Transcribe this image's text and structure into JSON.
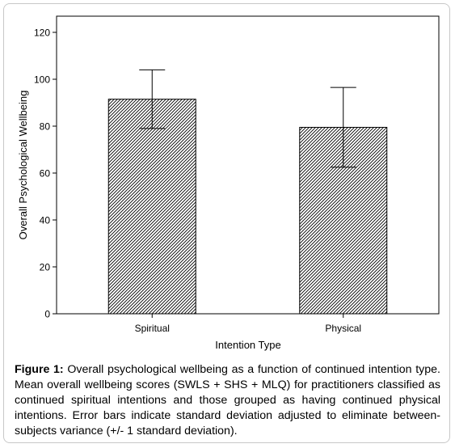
{
  "chart_data": {
    "type": "bar",
    "title": "",
    "xlabel": "Intention Type",
    "ylabel": "Overall Psychological Wellbeing",
    "categories": [
      "Spiritual",
      "Physical"
    ],
    "values": [
      91.5,
      79.5
    ],
    "error_bars": {
      "lower": [
        79,
        62.5
      ],
      "upper": [
        104,
        96.5
      ]
    },
    "ylim": [
      0,
      120
    ],
    "yticks": [
      "0",
      "20",
      "40",
      "60",
      "80",
      "100",
      "120"
    ],
    "bar_fill": "diagonal-hatch",
    "grid": false,
    "legend": "none"
  },
  "caption": {
    "label": "Figure 1:",
    "text": " Overall psychological wellbeing as a function of continued intention type. Mean overall wellbeing scores (SWLS + SHS + MLQ) for practitioners classified as continued spiritual intentions and those grouped as having continued physical intentions. Error bars indicate standard deviation adjusted to eliminate between-subjects variance (+/- 1 standard deviation)."
  },
  "colors": {
    "axis": "#000000",
    "bar_outline": "#000000",
    "hatch": "#000000",
    "frame_border": "#c8c8c8"
  }
}
